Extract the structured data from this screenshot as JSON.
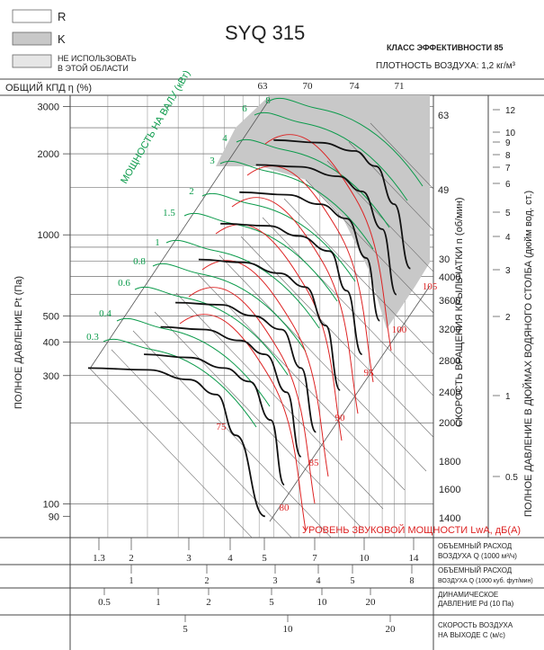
{
  "chart_data": {
    "type": "line",
    "title": "SYQ 315",
    "legend": [
      {
        "label": "R",
        "color": "#ffffff"
      },
      {
        "label": "K",
        "color": "#c8c8c8"
      },
      {
        "label": "НЕ ИСПОЛЬЗОВАТЬ В ЭТОЙ ОБЛАСТИ",
        "color": "#e6e6e6"
      }
    ],
    "efficiency_class": "КЛАСС ЭФФЕКТИВНОСТИ 85",
    "air_density": "ПЛОТНОСТЬ ВОЗДУХА: 1,2 кг/м³",
    "efficiency_axis_label": "ОБЩИЙ КПД η (%)",
    "efficiency_values": [
      "63",
      "70",
      "74",
      "71"
    ],
    "ylabel": "ПОЛНОЕ ДАВЛЕНИЕ Pt (Па)",
    "yscale": "log",
    "ylim": [
      90,
      3000
    ],
    "y_ticks": [
      "3000",
      "2000",
      "1000",
      "500",
      "400",
      "300",
      "100",
      "90"
    ],
    "xscale": "log",
    "xlim": [
      1.3,
      14
    ],
    "x_ticks_flow_m3h": [
      "1.3",
      "2",
      "3",
      "4",
      "5",
      "7",
      "10",
      "14"
    ],
    "x_ticks_flow_cfm": [
      "1",
      "2",
      "3",
      "4",
      "5",
      "8"
    ],
    "x_ticks_dynamic_pressure": [
      "0.5",
      "1",
      "2",
      "5",
      "10",
      "20"
    ],
    "x_ticks_velocity": [
      "5",
      "10",
      "20"
    ],
    "bottom_axis_labels": [
      "ОБЪЕМНЫЙ РАСХОД ВОЗДУХА Q (1000 м³/ч)",
      "ОБЪЕМНЫЙ РАСХОД ВОЗДУХА Q (1000 куб. фут/мин)",
      "ДИНАМИЧЕСКОЕ ДАВЛЕНИЕ Pd (10 Па)",
      "СКОРОСТЬ ВОЗДУХА НА ВЫХОДЕ С (м/с)"
    ],
    "speed_axis_label": "СКОРОСТЬ ВРАЩЕНИЯ КРЫЛЬЧАТКИ n (об/мин)",
    "speeds_rpm": [
      "4000",
      "3600",
      "3200",
      "2800",
      "2400",
      "2000",
      "1800",
      "1600",
      "1400"
    ],
    "inch_axis_label": "ПОЛНОЕ ДАВЛЕНИЕ В ДЮЙМАХ ВОДЯНОГО СТОЛБА (дюйм вод. ст.)",
    "inch_ticks": [
      "12",
      "10",
      "9",
      "8",
      "7",
      "6",
      "5",
      "4",
      "3",
      "2",
      "1",
      "0.5"
    ],
    "shaft_power_label": "МОЩНОСТЬ НА ВАЛУ (кВт)",
    "shaft_power_kw": [
      "0.3",
      "0.4",
      "0.6",
      "0.8",
      "1",
      "1.5",
      "2",
      "3",
      "4",
      "6",
      "8"
    ],
    "sound_power_label": "УРОВЕНЬ ЗВУКОВОЙ МОЩНОСТИ LwA, дБ(А)",
    "sound_power_dba": [
      "75",
      "80",
      "85",
      "90",
      "95",
      "100",
      "105"
    ],
    "outlet_velocity_marks": [
      "63",
      "49",
      "30"
    ],
    "series": [
      {
        "rpm": 4000,
        "x": [
          5.0,
          7.0,
          9.0,
          10.5,
          12.0,
          13.5
        ],
        "y": [
          2250,
          2200,
          2050,
          1800,
          1300,
          750
        ]
      },
      {
        "rpm": 3600,
        "x": [
          4.4,
          6.0,
          8.0,
          9.5,
          11.0,
          12.2
        ],
        "y": [
          1820,
          1790,
          1650,
          1450,
          1050,
          600
        ]
      },
      {
        "rpm": 3200,
        "x": [
          3.9,
          5.5,
          7.0,
          8.5,
          9.8,
          10.8
        ],
        "y": [
          1440,
          1410,
          1300,
          1150,
          820,
          480
        ]
      },
      {
        "rpm": 2800,
        "x": [
          3.4,
          4.8,
          6.0,
          7.5,
          8.5,
          9.5
        ],
        "y": [
          1100,
          1080,
          990,
          870,
          620,
          360
        ]
      },
      {
        "rpm": 2400,
        "x": [
          2.9,
          4.0,
          5.2,
          6.3,
          7.3,
          8.1
        ],
        "y": [
          810,
          790,
          720,
          640,
          460,
          265
        ]
      },
      {
        "rpm": 2000,
        "x": [
          2.45,
          3.4,
          4.3,
          5.3,
          6.1,
          6.8
        ],
        "y": [
          560,
          550,
          500,
          445,
          320,
          185
        ]
      },
      {
        "rpm": 1800,
        "x": [
          2.2,
          3.0,
          3.9,
          4.7,
          5.5,
          6.1
        ],
        "y": [
          455,
          445,
          405,
          360,
          260,
          150
        ]
      },
      {
        "rpm": 1600,
        "x": [
          1.95,
          2.7,
          3.5,
          4.2,
          4.9,
          5.4
        ],
        "y": [
          360,
          350,
          320,
          285,
          205,
          118
        ]
      },
      {
        "rpm": 1400,
        "x": [
          1.3,
          2.0,
          2.7,
          3.3,
          3.8,
          4.7
        ],
        "y": [
          320,
          315,
          290,
          255,
          180,
          90
        ]
      }
    ]
  }
}
